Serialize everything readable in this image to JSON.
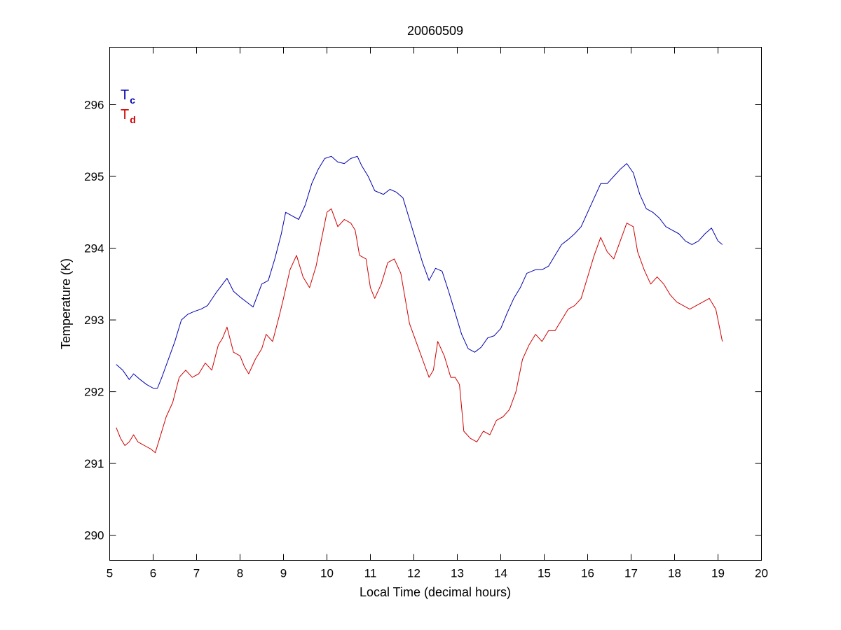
{
  "chart_data": {
    "type": "line",
    "title": "20060509",
    "xlabel": "Local Time (decimal hours)",
    "ylabel": "Temperature (K)",
    "xlim": [
      5,
      20
    ],
    "ylim": [
      289.65,
      296.8
    ],
    "xticks": [
      5,
      6,
      7,
      8,
      9,
      10,
      11,
      12,
      13,
      14,
      15,
      16,
      17,
      18,
      19,
      20
    ],
    "yticks": [
      290,
      291,
      292,
      293,
      294,
      295,
      296
    ],
    "grid": false,
    "legend_position": "top-left",
    "series": [
      {
        "name": "Tc",
        "label_main": "T",
        "label_sub": "c",
        "color": "#0000b0",
        "x": [
          5.15,
          5.3,
          5.45,
          5.55,
          5.7,
          5.85,
          6.0,
          6.1,
          6.2,
          6.35,
          6.5,
          6.65,
          6.8,
          6.95,
          7.1,
          7.25,
          7.45,
          7.6,
          7.7,
          7.85,
          8.0,
          8.15,
          8.3,
          8.5,
          8.65,
          8.8,
          8.95,
          9.05,
          9.2,
          9.35,
          9.5,
          9.65,
          9.8,
          9.95,
          10.1,
          10.25,
          10.4,
          10.55,
          10.7,
          10.8,
          10.95,
          11.1,
          11.3,
          11.45,
          11.6,
          11.75,
          11.9,
          12.05,
          12.2,
          12.35,
          12.5,
          12.65,
          12.8,
          12.95,
          13.1,
          13.25,
          13.4,
          13.55,
          13.7,
          13.85,
          14.0,
          14.15,
          14.3,
          14.45,
          14.6,
          14.8,
          14.95,
          15.1,
          15.25,
          15.4,
          15.55,
          15.7,
          15.85,
          16.0,
          16.15,
          16.3,
          16.45,
          16.6,
          16.75,
          16.9,
          17.05,
          17.2,
          17.35,
          17.5,
          17.65,
          17.8,
          17.95,
          18.1,
          18.25,
          18.4,
          18.55,
          18.7,
          18.85,
          19.0,
          19.1
        ],
        "y": [
          292.38,
          292.3,
          292.17,
          292.25,
          292.17,
          292.1,
          292.05,
          292.05,
          292.2,
          292.45,
          292.7,
          293.0,
          293.08,
          293.12,
          293.15,
          293.2,
          293.38,
          293.5,
          293.58,
          293.4,
          293.32,
          293.25,
          293.18,
          293.5,
          293.55,
          293.85,
          294.2,
          294.5,
          294.45,
          294.4,
          294.6,
          294.9,
          295.1,
          295.25,
          295.28,
          295.2,
          295.18,
          295.25,
          295.28,
          295.15,
          295.0,
          294.8,
          294.75,
          294.82,
          294.78,
          294.7,
          294.4,
          294.1,
          293.8,
          293.55,
          293.72,
          293.68,
          293.4,
          293.1,
          292.8,
          292.6,
          292.55,
          292.62,
          292.75,
          292.78,
          292.88,
          293.1,
          293.3,
          293.45,
          293.65,
          293.7,
          293.7,
          293.75,
          293.9,
          294.05,
          294.12,
          294.2,
          294.3,
          294.5,
          294.7,
          294.9,
          294.9,
          295.0,
          295.1,
          295.18,
          295.05,
          294.75,
          294.55,
          294.5,
          294.42,
          294.3,
          294.25,
          294.2,
          294.1,
          294.05,
          294.1,
          294.2,
          294.28,
          294.1,
          294.05
        ]
      },
      {
        "name": "Td",
        "label_main": "T",
        "label_sub": "d",
        "color": "#d00000",
        "x": [
          5.15,
          5.25,
          5.35,
          5.45,
          5.55,
          5.65,
          5.8,
          5.95,
          6.05,
          6.15,
          6.3,
          6.45,
          6.6,
          6.75,
          6.9,
          7.05,
          7.2,
          7.35,
          7.5,
          7.6,
          7.7,
          7.85,
          8.0,
          8.1,
          8.2,
          8.35,
          8.5,
          8.6,
          8.75,
          8.9,
          9.0,
          9.15,
          9.3,
          9.45,
          9.6,
          9.75,
          9.9,
          10.0,
          10.1,
          10.25,
          10.4,
          10.55,
          10.65,
          10.75,
          10.9,
          11.0,
          11.1,
          11.25,
          11.4,
          11.55,
          11.7,
          11.8,
          11.9,
          12.05,
          12.2,
          12.35,
          12.45,
          12.55,
          12.7,
          12.85,
          12.95,
          13.05,
          13.15,
          13.3,
          13.45,
          13.6,
          13.75,
          13.9,
          14.05,
          14.2,
          14.35,
          14.5,
          14.65,
          14.8,
          14.95,
          15.1,
          15.25,
          15.4,
          15.55,
          15.7,
          15.85,
          16.0,
          16.15,
          16.3,
          16.45,
          16.6,
          16.75,
          16.9,
          17.05,
          17.15,
          17.3,
          17.45,
          17.6,
          17.75,
          17.9,
          18.05,
          18.2,
          18.35,
          18.5,
          18.65,
          18.8,
          18.95,
          19.05,
          19.1
        ],
        "y": [
          291.5,
          291.35,
          291.25,
          291.3,
          291.4,
          291.3,
          291.25,
          291.2,
          291.15,
          291.35,
          291.65,
          291.85,
          292.2,
          292.3,
          292.2,
          292.25,
          292.4,
          292.3,
          292.65,
          292.75,
          292.9,
          292.55,
          292.5,
          292.35,
          292.25,
          292.45,
          292.6,
          292.8,
          292.7,
          293.05,
          293.3,
          293.7,
          293.9,
          293.6,
          293.45,
          293.75,
          294.2,
          294.5,
          294.55,
          294.3,
          294.4,
          294.35,
          294.25,
          293.9,
          293.85,
          293.45,
          293.3,
          293.5,
          293.8,
          293.85,
          293.65,
          293.3,
          292.95,
          292.7,
          292.45,
          292.2,
          292.3,
          292.7,
          292.5,
          292.2,
          292.2,
          292.1,
          291.45,
          291.35,
          291.3,
          291.45,
          291.4,
          291.6,
          291.65,
          291.75,
          292.0,
          292.45,
          292.65,
          292.8,
          292.7,
          292.85,
          292.85,
          293.0,
          293.15,
          293.2,
          293.3,
          293.6,
          293.9,
          294.15,
          293.95,
          293.85,
          294.1,
          294.35,
          294.3,
          293.95,
          293.7,
          293.5,
          293.6,
          293.5,
          293.35,
          293.25,
          293.2,
          293.15,
          293.2,
          293.25,
          293.3,
          293.15,
          292.85,
          292.7
        ]
      }
    ]
  }
}
